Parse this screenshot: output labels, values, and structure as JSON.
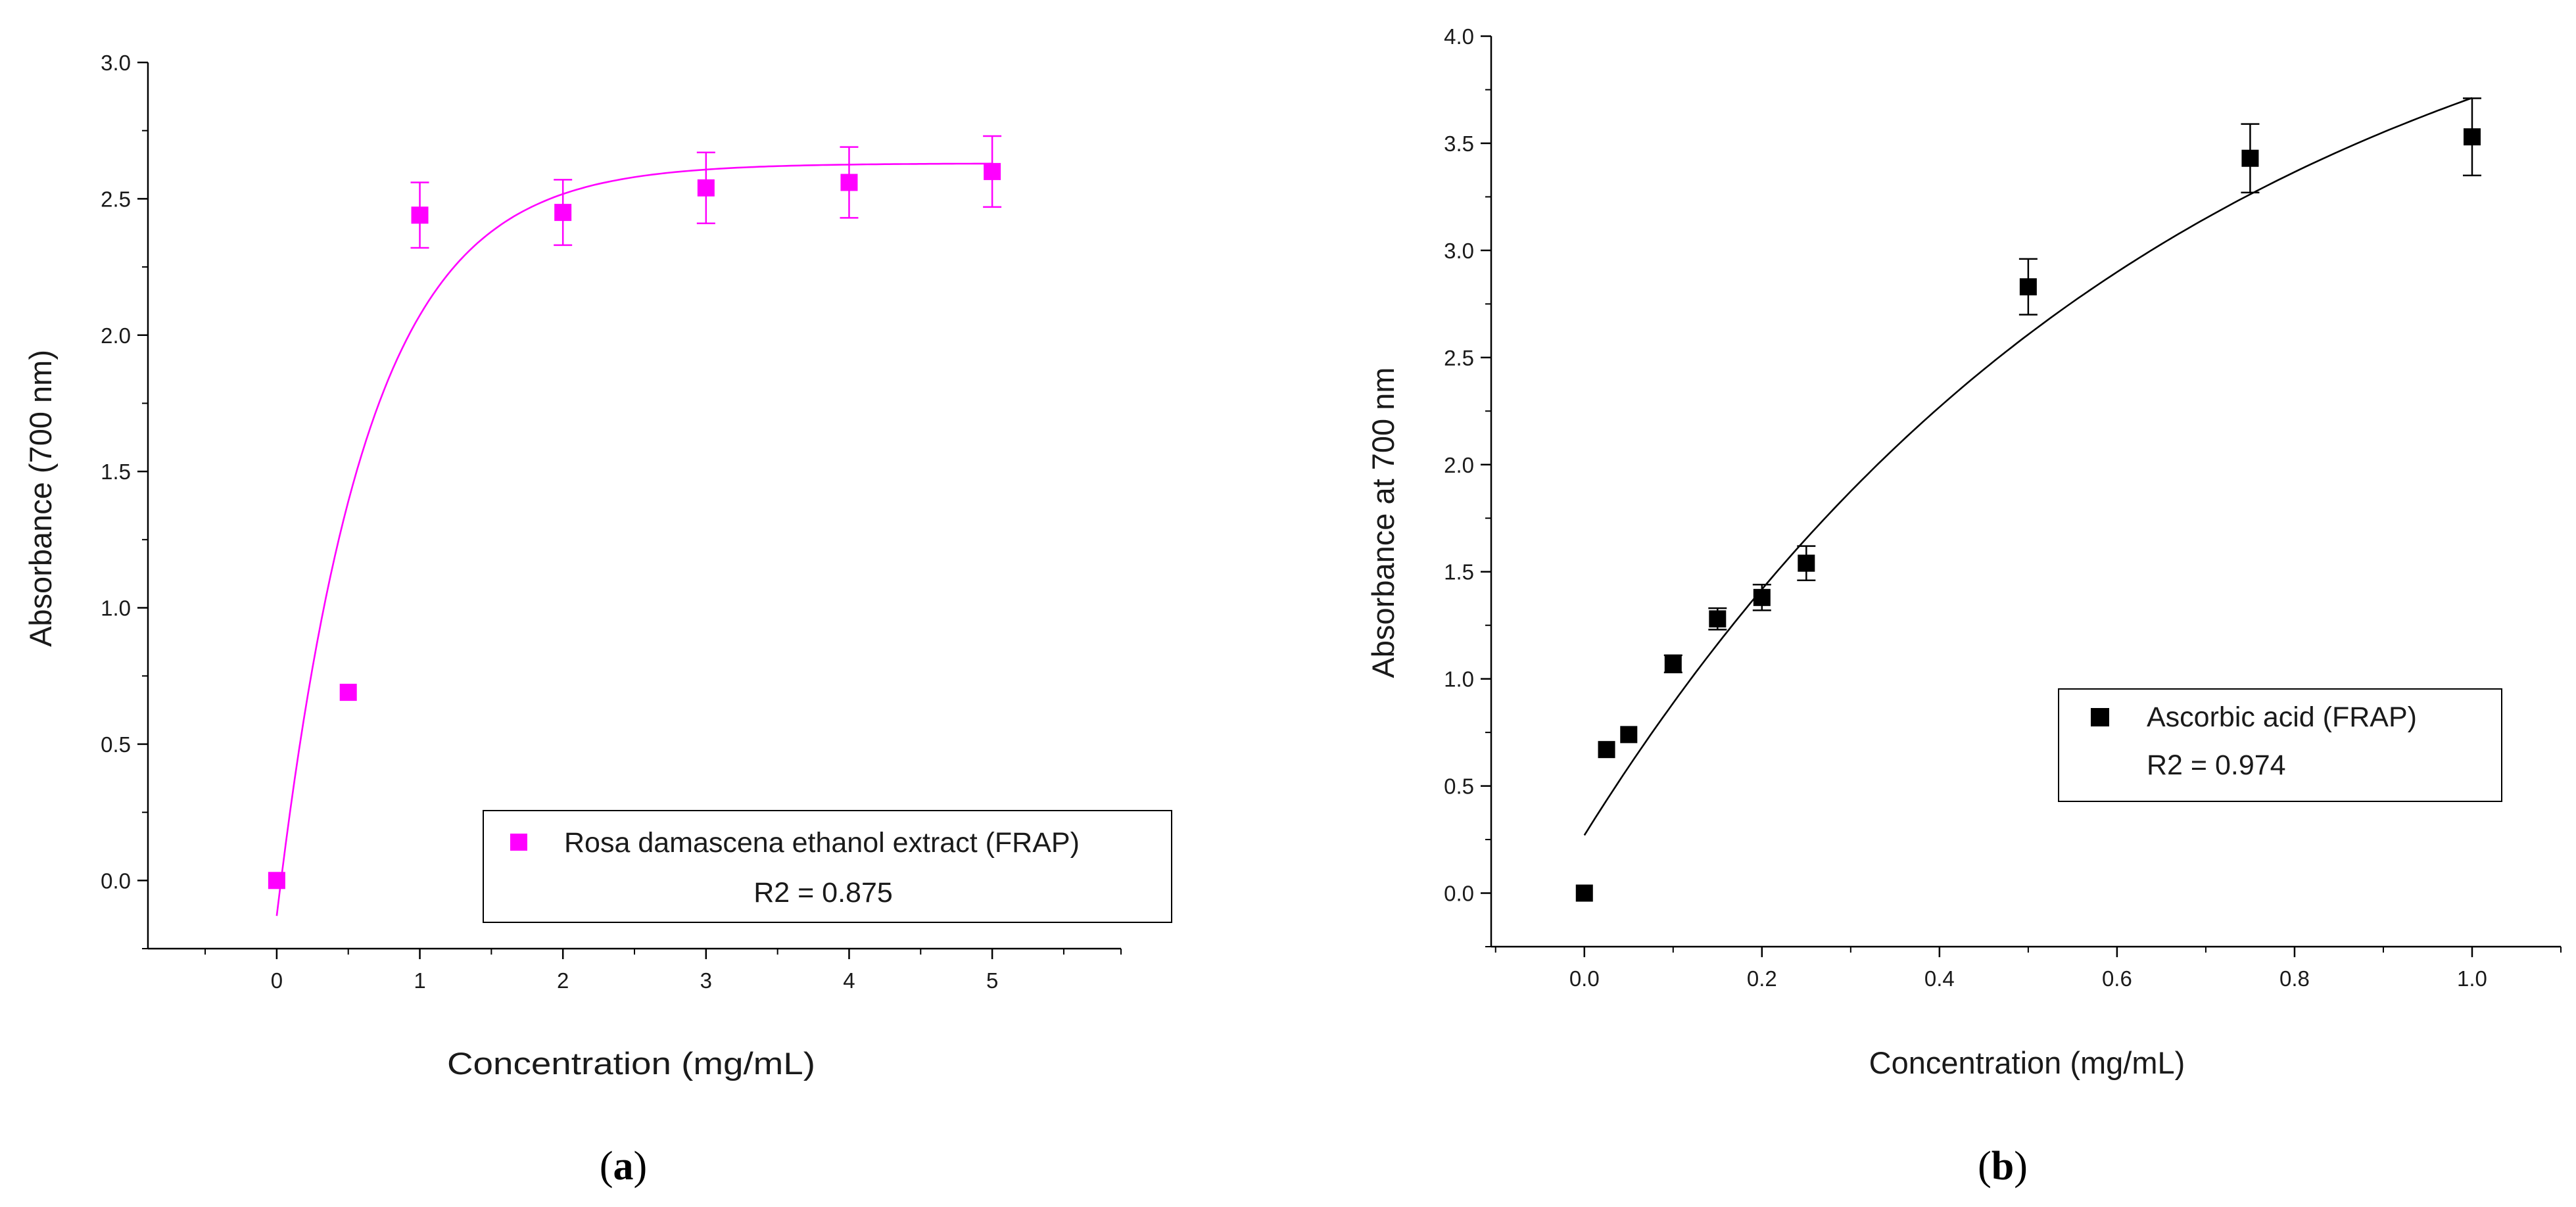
{
  "colors": {
    "chart_a": "#ff00ff",
    "chart_b": "#000000",
    "axis": "#000000"
  },
  "chart_data": [
    {
      "type": "scatter",
      "panel_label": "a",
      "xlabel": "Concentration (mg/mL)",
      "ylabel": "Absorbance (700 nm)",
      "xlim": [
        -0.9,
        5.9
      ],
      "ylim": [
        -0.25,
        3.0
      ],
      "xticks": [
        0,
        1,
        2,
        3,
        4,
        5
      ],
      "xtick_labels": [
        "0",
        "1",
        "2",
        "3",
        "4",
        "5"
      ],
      "yticks": [
        0.0,
        0.5,
        1.0,
        1.5,
        2.0,
        2.5,
        3.0
      ],
      "ytick_labels": [
        "0.0",
        "0.5",
        "1.0",
        "1.5",
        "2.0",
        "2.5",
        "3.0"
      ],
      "series": [
        {
          "name": "Rosa damascena ethanol extract (FRAP)",
          "x": [
            0,
            0.5,
            1,
            2,
            3,
            4,
            5
          ],
          "y": [
            0.0,
            0.69,
            2.44,
            2.45,
            2.54,
            2.56,
            2.6
          ],
          "err": [
            0,
            0,
            0.12,
            0.12,
            0.13,
            0.13,
            0.13
          ]
        }
      ],
      "fit": {
        "model": "exponential",
        "plateau": 2.63,
        "y0": -0.13,
        "k": 1.6,
        "x_from": 0,
        "x_to": 5
      },
      "legend": {
        "entry": "Rosa damascena ethanol extract (FRAP)",
        "stat": "R2 = 0.875",
        "position": "bottom-right"
      }
    },
    {
      "type": "scatter",
      "panel_label": "b",
      "xlabel": "Concentration (mg/mL)",
      "ylabel": "Absorbance at 700 nm",
      "xlim": [
        -0.105,
        1.1
      ],
      "ylim": [
        -0.25,
        4.0
      ],
      "xticks": [
        0.0,
        0.2,
        0.4,
        0.6,
        0.8,
        1.0
      ],
      "xtick_labels": [
        "0.0",
        "0.2",
        "0.4",
        "0.6",
        "0.8",
        "1.0"
      ],
      "yticks": [
        0.0,
        0.5,
        1.0,
        1.5,
        2.0,
        2.5,
        3.0,
        3.5,
        4.0
      ],
      "ytick_labels": [
        "0.0",
        "0.5",
        "1.0",
        "1.5",
        "2.0",
        "2.5",
        "3.0",
        "3.5",
        "4.0"
      ],
      "series": [
        {
          "name": "Ascorbic acid (FRAP)",
          "x": [
            0,
            0.025,
            0.05,
            0.1,
            0.15,
            0.2,
            0.25,
            0.5,
            0.75,
            1.0
          ],
          "y": [
            0.0,
            0.67,
            0.74,
            1.07,
            1.28,
            1.38,
            1.54,
            2.83,
            3.43,
            3.53
          ],
          "err": [
            0,
            0,
            0,
            0.04,
            0.05,
            0.06,
            0.08,
            0.13,
            0.16,
            0.18
          ]
        }
      ],
      "fit": {
        "model": "exponential",
        "plateau": 4.7,
        "y0": 0.27,
        "k": 1.5,
        "x_from": 0,
        "x_to": 1.0
      },
      "legend": {
        "entry": "Ascorbic acid (FRAP)",
        "stat": "R2 = 0.974",
        "position": "middle-right"
      }
    }
  ]
}
